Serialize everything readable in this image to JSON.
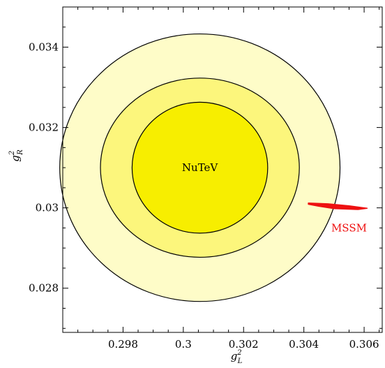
{
  "chart_data": {
    "type": "contour",
    "xlabel": {
      "main": "g",
      "sup": "2",
      "sub": "L"
    },
    "ylabel": {
      "main": "g",
      "sup": "2",
      "sub": "R"
    },
    "xlim": [
      0.296,
      0.3066
    ],
    "ylim": [
      0.0269,
      0.035
    ],
    "x_ticks": [
      {
        "value": 0.298,
        "label": "0.298"
      },
      {
        "value": 0.3,
        "label": "0.3"
      },
      {
        "value": 0.302,
        "label": "0.302"
      },
      {
        "value": 0.304,
        "label": "0.304"
      },
      {
        "value": 0.306,
        "label": "0.306"
      }
    ],
    "y_ticks": [
      {
        "value": 0.028,
        "label": "0.028"
      },
      {
        "value": 0.03,
        "label": "0.03"
      },
      {
        "value": 0.032,
        "label": "0.032"
      },
      {
        "value": 0.034,
        "label": "0.034"
      }
    ],
    "ellipses": [
      {
        "center": [
          0.30055,
          0.031
        ],
        "rx": 0.00465,
        "ry": 0.00333,
        "fill": "#fefcc8"
      },
      {
        "center": [
          0.30055,
          0.031
        ],
        "rx": 0.0033,
        "ry": 0.00223,
        "fill": "#fcf67c"
      },
      {
        "center": [
          0.30055,
          0.031
        ],
        "rx": 0.00225,
        "ry": 0.00163,
        "fill": "#f7ee00"
      }
    ],
    "mssm_region": {
      "color": "#ee1111",
      "points": [
        [
          0.30415,
          0.03012
        ],
        [
          0.3048,
          0.0301
        ],
        [
          0.3055,
          0.03005
        ],
        [
          0.3061,
          0.02999
        ],
        [
          0.3058,
          0.02996
        ],
        [
          0.305,
          0.02998
        ],
        [
          0.3045,
          0.03004
        ],
        [
          0.30415,
          0.03009
        ]
      ]
    },
    "annotations": [
      {
        "text": "NuTeV",
        "x": 0.30055,
        "y": 0.031,
        "color": "#000000"
      },
      {
        "text": "MSSM",
        "x": 0.3055,
        "y": 0.0295,
        "color": "#ee1111"
      }
    ]
  }
}
